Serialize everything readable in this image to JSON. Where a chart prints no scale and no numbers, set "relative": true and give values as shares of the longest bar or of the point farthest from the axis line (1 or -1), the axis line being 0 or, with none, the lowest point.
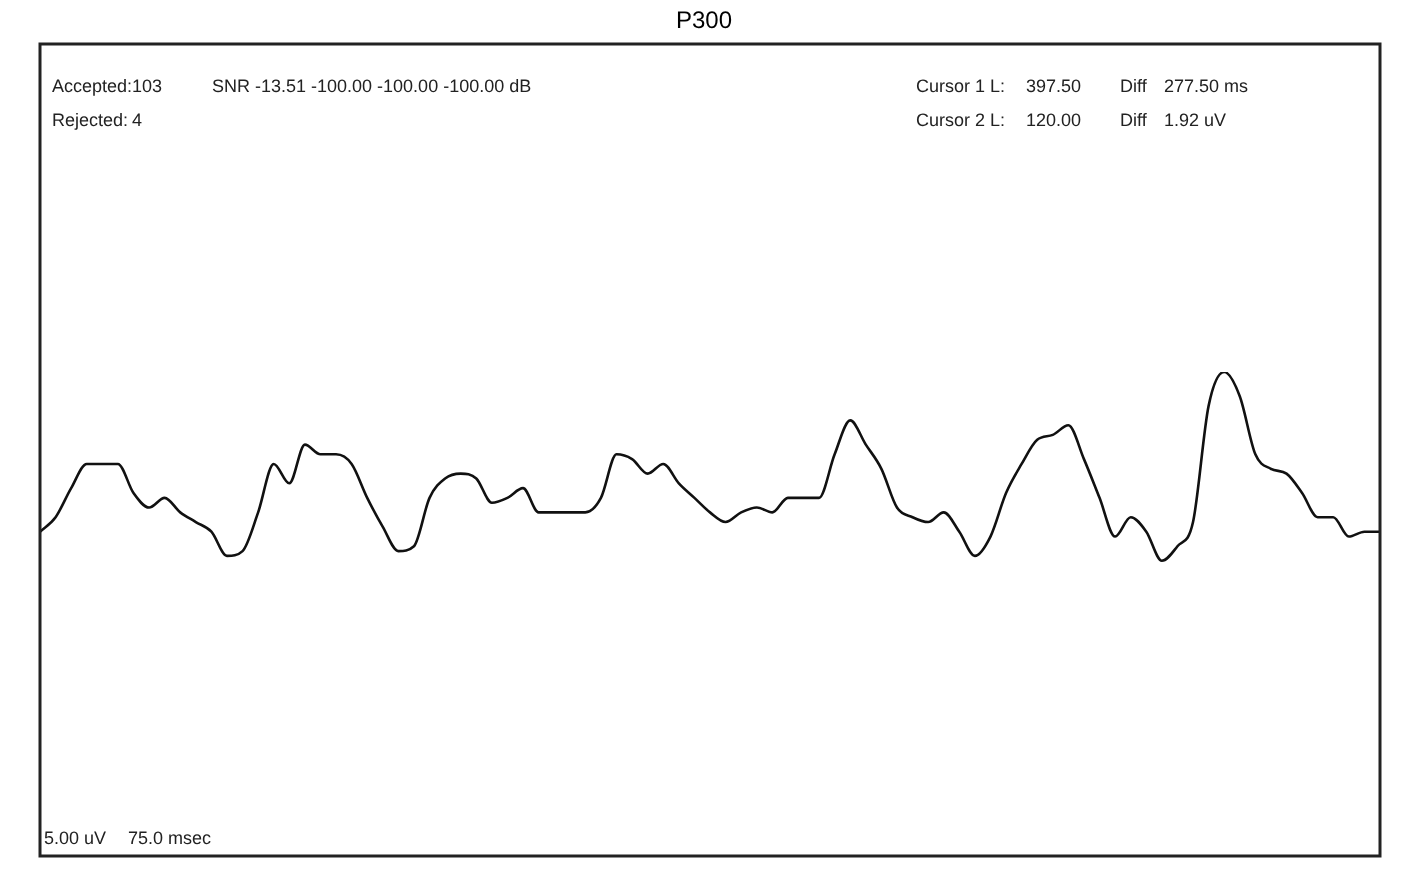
{
  "chart_data": {
    "type": "line",
    "title": "P300",
    "relative": true,
    "legend": false,
    "marker": "none",
    "line_style": "solid",
    "categories": [
      null,
      null,
      null,
      null,
      null,
      null,
      null,
      null,
      null,
      null,
      null,
      null,
      null,
      null,
      null,
      null,
      null,
      null,
      null,
      null,
      null,
      null,
      null,
      null,
      null,
      null,
      null,
      null,
      null,
      null,
      null,
      null,
      null,
      null,
      null,
      null,
      null,
      null,
      null,
      null,
      null,
      null,
      null,
      null,
      null,
      null,
      null,
      null,
      null,
      null,
      null,
      null,
      null,
      null,
      null,
      null,
      null,
      null,
      null,
      null,
      null,
      null,
      null,
      null,
      null,
      null,
      null,
      null,
      null,
      null,
      null,
      null,
      null,
      null,
      null,
      null,
      null,
      null,
      null,
      null,
      null,
      null,
      null,
      null,
      null,
      null,
      null
    ],
    "series": [
      {
        "color": "#111111",
        "values": [
          0.67,
          0.7,
          0.76,
          0.81,
          0.81,
          0.81,
          0.75,
          0.72,
          0.74,
          0.71,
          0.69,
          0.67,
          0.62,
          0.63,
          0.71,
          0.81,
          0.77,
          0.85,
          0.83,
          0.83,
          0.81,
          0.74,
          0.68,
          0.63,
          0.64,
          0.74,
          0.78,
          0.79,
          0.78,
          0.73,
          0.74,
          0.76,
          0.71,
          0.71,
          0.71,
          0.71,
          0.74,
          0.83,
          0.82,
          0.79,
          0.81,
          0.77,
          0.74,
          0.71,
          0.69,
          0.71,
          0.72,
          0.71,
          0.74,
          0.74,
          0.74,
          0.83,
          0.9,
          0.85,
          0.8,
          0.72,
          0.7,
          0.69,
          0.71,
          0.67,
          0.62,
          0.66,
          0.75,
          0.81,
          0.86,
          0.87,
          0.89,
          0.82,
          0.74,
          0.66,
          0.7,
          0.67,
          0.61,
          0.64,
          0.69,
          0.93,
          1,
          0.95,
          0.83,
          0.8,
          0.79,
          0.75,
          0.7,
          0.7,
          0.66,
          0.67,
          0.67
        ]
      }
    ],
    "annotations": [
      "Accepted:",
      "103",
      "SNR -13.51 -100.00 -100.00 -100.00 dB",
      "Rejected:",
      "4",
      "Cursor 1 L:",
      "397.50",
      "Diff",
      "277.50 ms",
      "Cursor 2 L:",
      "120.00",
      "Diff",
      "1.92 uV",
      "5.00 uV",
      "75.0 msec"
    ]
  }
}
